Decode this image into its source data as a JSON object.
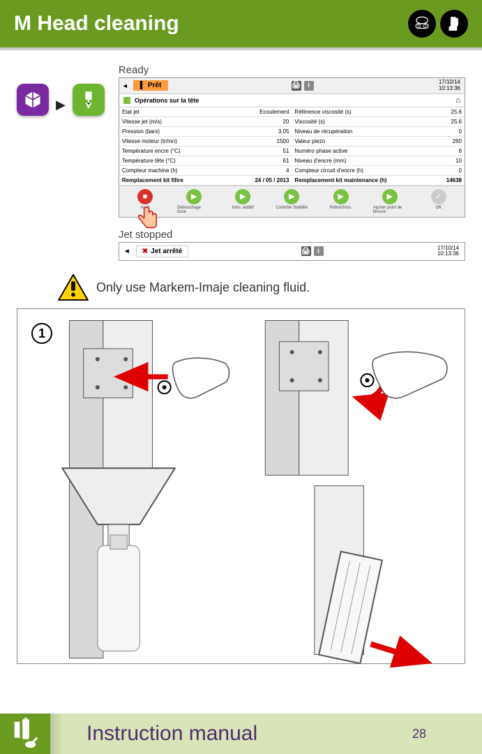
{
  "header": {
    "title": "M Head cleaning",
    "bg": "#6a9a1f"
  },
  "ready_label": "Ready",
  "screenshot1": {
    "status_label": "Prêt",
    "date": "17/10/14",
    "time": "10:13:36",
    "section": "Opérations sur la tête",
    "left_rows": [
      {
        "k": "Etat jet",
        "v": "Ecoulement"
      },
      {
        "k": "Vitesse jet (m/s)",
        "v": "20"
      },
      {
        "k": "Pression (bars)",
        "v": "3.05"
      },
      {
        "k": "Vitesse moteur (tr/mn)",
        "v": "1500"
      },
      {
        "k": "Température encre (°C)",
        "v": "51"
      },
      {
        "k": "Température tête (°C)",
        "v": "61"
      },
      {
        "k": "Compteur machine (h)",
        "v": "4"
      },
      {
        "k": "Remplacement kit filtre",
        "v": "24 / 05 / 2013"
      }
    ],
    "right_rows": [
      {
        "k": "Référence viscosité (s)",
        "v": "25.6"
      },
      {
        "k": "Viscosité (s)",
        "v": "25.6"
      },
      {
        "k": "Niveau de récupération",
        "v": "0"
      },
      {
        "k": "Valeur piezo",
        "v": "260"
      },
      {
        "k": "Numéro phase active",
        "v": "6"
      },
      {
        "k": "Niveau d'encre (mm)",
        "v": "10"
      },
      {
        "k": "Compteur circuit d'encre (h)",
        "v": "0"
      },
      {
        "k": "Remplacement kit maintenance (h)",
        "v": "14638"
      }
    ],
    "buttons": [
      {
        "label": "Arrêt",
        "type": "red"
      },
      {
        "label": "Débouchage buse",
        "type": "green"
      },
      {
        "label": "Intro. additif",
        "type": "green"
      },
      {
        "label": "Contrôle Stabilité",
        "type": "green"
      },
      {
        "label": "Rafraîchiss.",
        "type": "green"
      },
      {
        "label": "Ajuster point de brisure",
        "type": "green"
      },
      {
        "label": "OK",
        "type": "grey"
      }
    ]
  },
  "jet_stopped_label": "Jet stopped",
  "screenshot2": {
    "status_label": "Jet arrêté",
    "date": "17/10/14",
    "time": "10:13:36"
  },
  "warning_text": "Only use Markem-Imaje cleaning fluid.",
  "step_number": "1",
  "footer": {
    "title": "Instruction manual",
    "page": "28"
  },
  "colors": {
    "green": "#6a9a1f",
    "lightgreen": "#7ac142",
    "orange": "#ff9a3c",
    "red": "#d9302c",
    "purple": "#522a6e",
    "footer_bg": "#d8e5b8"
  }
}
